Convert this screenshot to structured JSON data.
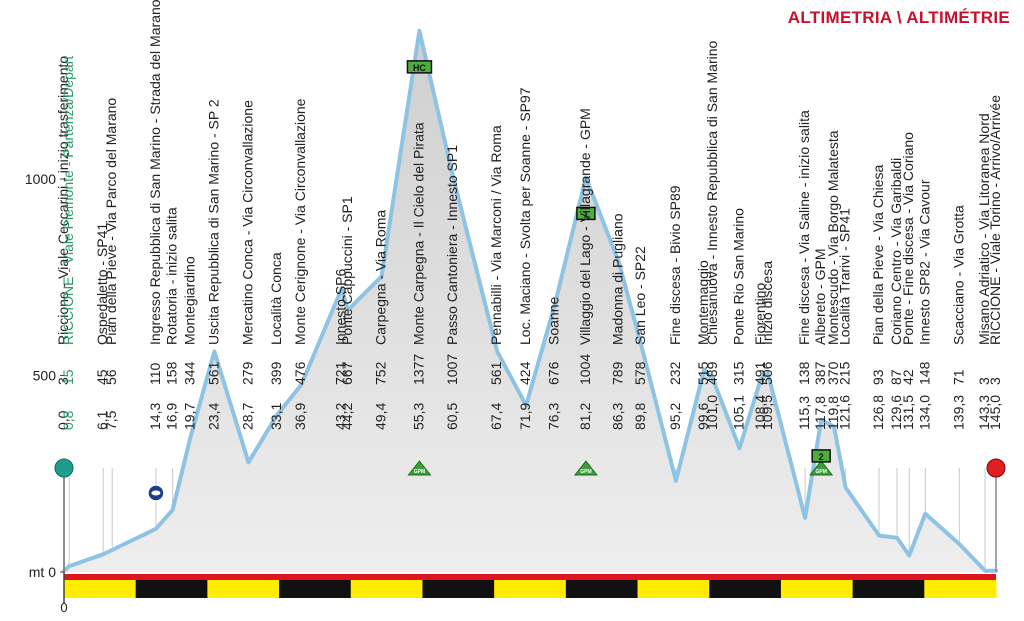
{
  "header": {
    "title": "ALTIMETRIA \\ ALTIMÉTRIE"
  },
  "chart_data": {
    "type": "area",
    "xlim": [
      0,
      145
    ],
    "ylim": [
      0,
      1400
    ],
    "y_ticks": [
      {
        "value": 0,
        "label": "mt 0"
      },
      {
        "value": 500,
        "label": "500"
      },
      {
        "value": 1000,
        "label": "1000"
      }
    ],
    "x_origin_label": "0",
    "waypoints": [
      {
        "km": 0.0,
        "km_label": "0,0",
        "alt": 3,
        "name": "Riccione - Viale Ceccarini - inizio trasferimento",
        "highlight": false
      },
      {
        "km": 0.8,
        "km_label": "0,8",
        "alt": 15,
        "name": "RICCIONE - Viale Piemonte - Partenza/Depart",
        "highlight": true
      },
      {
        "km": 6.1,
        "km_label": "6,1",
        "alt": 45,
        "name": "Ospedaletto - SP41",
        "highlight": false
      },
      {
        "km": 7.5,
        "km_label": "7,5",
        "alt": 56,
        "name": "Pian della Pieve - Via Parco del Marano",
        "highlight": false
      },
      {
        "km": 14.3,
        "km_label": "14,3",
        "alt": 110,
        "name": "Ingresso Repubblica di San Marino - Strada del Marano",
        "highlight": false
      },
      {
        "km": 16.9,
        "km_label": "16,9",
        "alt": 158,
        "name": "Rotatoria - inizio salita",
        "highlight": false
      },
      {
        "km": 19.7,
        "km_label": "19,7",
        "alt": 344,
        "name": "Montegiardino",
        "highlight": false
      },
      {
        "km": 23.4,
        "km_label": "23,4",
        "alt": 561,
        "name": "Uscita Repubblica di San Marino - SP 2",
        "highlight": false
      },
      {
        "km": 28.7,
        "km_label": "28,7",
        "alt": 279,
        "name": "Mercatino Conca - Via Circonvallazione",
        "highlight": false
      },
      {
        "km": 33.1,
        "km_label": "33,1",
        "alt": 399,
        "name": "Località Conca",
        "highlight": false
      },
      {
        "km": 36.9,
        "km_label": "36,9",
        "alt": 476,
        "name": "Monte Cerignone - Via Circonvallazione",
        "highlight": false
      },
      {
        "km": 43.2,
        "km_label": "43,2",
        "alt": 721,
        "name": "Innesto SP6",
        "highlight": false
      },
      {
        "km": 44.2,
        "km_label": "44,2",
        "alt": 667,
        "name": "Ponte Cappuccini - SP1",
        "highlight": false
      },
      {
        "km": 49.4,
        "km_label": "49,4",
        "alt": 752,
        "name": "Carpegna - Via Roma",
        "highlight": false
      },
      {
        "km": 55.3,
        "km_label": "55,3",
        "alt": 1377,
        "name": "Monte Carpegna - Il Cielo del Pirata",
        "highlight": false
      },
      {
        "km": 60.5,
        "km_label": "60,5",
        "alt": 1007,
        "name": "Passo Cantoniera - Innesto SP1",
        "highlight": false
      },
      {
        "km": 67.4,
        "km_label": "67,4",
        "alt": 561,
        "name": "Pennabilli - Via Marconi / Via Roma",
        "highlight": false
      },
      {
        "km": 71.9,
        "km_label": "71,9",
        "alt": 424,
        "name": "Loc. Maciano - Svolta per Soanne - SP97",
        "highlight": false
      },
      {
        "km": 76.3,
        "km_label": "76,3",
        "alt": 676,
        "name": "Soanne",
        "highlight": false
      },
      {
        "km": 81.2,
        "km_label": "81,2",
        "alt": 1004,
        "name": "Villaggio del Lago - Villagrande - GPM",
        "highlight": false
      },
      {
        "km": 86.3,
        "km_label": "86,3",
        "alt": 789,
        "name": "Madonna di Pugliano",
        "highlight": false
      },
      {
        "km": 89.8,
        "km_label": "89,8",
        "alt": 578,
        "name": "San Leo - SP22",
        "highlight": false
      },
      {
        "km": 95.2,
        "km_label": "95,2",
        "alt": 232,
        "name": "Fine discesa - Bivio SP89",
        "highlight": false
      },
      {
        "km": 99.6,
        "km_label": "99,6",
        "alt": 515,
        "name": "Montemaggio",
        "highlight": false
      },
      {
        "km": 101.0,
        "km_label": "101,0",
        "alt": 489,
        "name": "Chiesanuova - Innesto Repubblica di San Marino",
        "highlight": false
      },
      {
        "km": 105.1,
        "km_label": "105,1",
        "alt": 315,
        "name": "Ponte Rio San Marino",
        "highlight": false
      },
      {
        "km": 108.4,
        "km_label": "108,4",
        "alt": 491,
        "name": "Fiorentino",
        "highlight": false
      },
      {
        "km": 109.5,
        "km_label": "109,5",
        "alt": 506,
        "name": "Inizio discesa",
        "highlight": false
      },
      {
        "km": 115.3,
        "km_label": "115,3",
        "alt": 138,
        "name": "Fine discesa - Via Saline - inizio salita",
        "highlight": false
      },
      {
        "km": 117.8,
        "km_label": "117,8",
        "alt": 387,
        "name": "Albereto - GPM",
        "highlight": false
      },
      {
        "km": 119.8,
        "km_label": "119,8",
        "alt": 370,
        "name": "Montescudo - Via Borgo Malatesta",
        "highlight": false
      },
      {
        "km": 121.6,
        "km_label": "121,6",
        "alt": 215,
        "name": "Località Trarivi - SP41",
        "highlight": false
      },
      {
        "km": 126.8,
        "km_label": "126,8",
        "alt": 93,
        "name": "Pian della Pieve - Via Chiesa",
        "highlight": false
      },
      {
        "km": 129.6,
        "km_label": "129,6",
        "alt": 87,
        "name": "Coriano Centro - Via Garibaldi",
        "highlight": false
      },
      {
        "km": 131.5,
        "km_label": "131,5",
        "alt": 42,
        "name": "Ponte - Fine discesa - Via Coriano",
        "highlight": false
      },
      {
        "km": 134.0,
        "km_label": "134,0",
        "alt": 148,
        "name": "Innesto SP82 - Via Cavour",
        "highlight": false
      },
      {
        "km": 139.3,
        "km_label": "139,3",
        "alt": 71,
        "name": "Scacciano - Via Grotta",
        "highlight": false
      },
      {
        "km": 143.3,
        "km_label": "143,3",
        "alt": 3,
        "name": "Misano Adriatico - Via Litoranea Nord",
        "highlight": false
      },
      {
        "km": 145.0,
        "km_label": "145,0",
        "alt": 3,
        "name": "RICCIONE - Viale Torino - Arrivo/Arrivée",
        "highlight": false
      }
    ],
    "gpm_markers": [
      {
        "km": 55.3,
        "label": "GPM",
        "category": "HC"
      },
      {
        "km": 81.2,
        "label": "GPM",
        "category": "1"
      },
      {
        "km": 117.8,
        "label": "GPM",
        "category": "2"
      }
    ],
    "colors": {
      "profile_line": "#8ec3e3",
      "profile_fill": "#dedede",
      "highlight_text": "#2e9a6a",
      "start_marker": "#1f9d8c",
      "finish_marker": "#e02020",
      "bar_red": "#e0141e",
      "bar_yellow": "#ffec00",
      "bar_black": "#111111",
      "gpm_green": "#3aa03a",
      "title": "#c8102e"
    }
  }
}
